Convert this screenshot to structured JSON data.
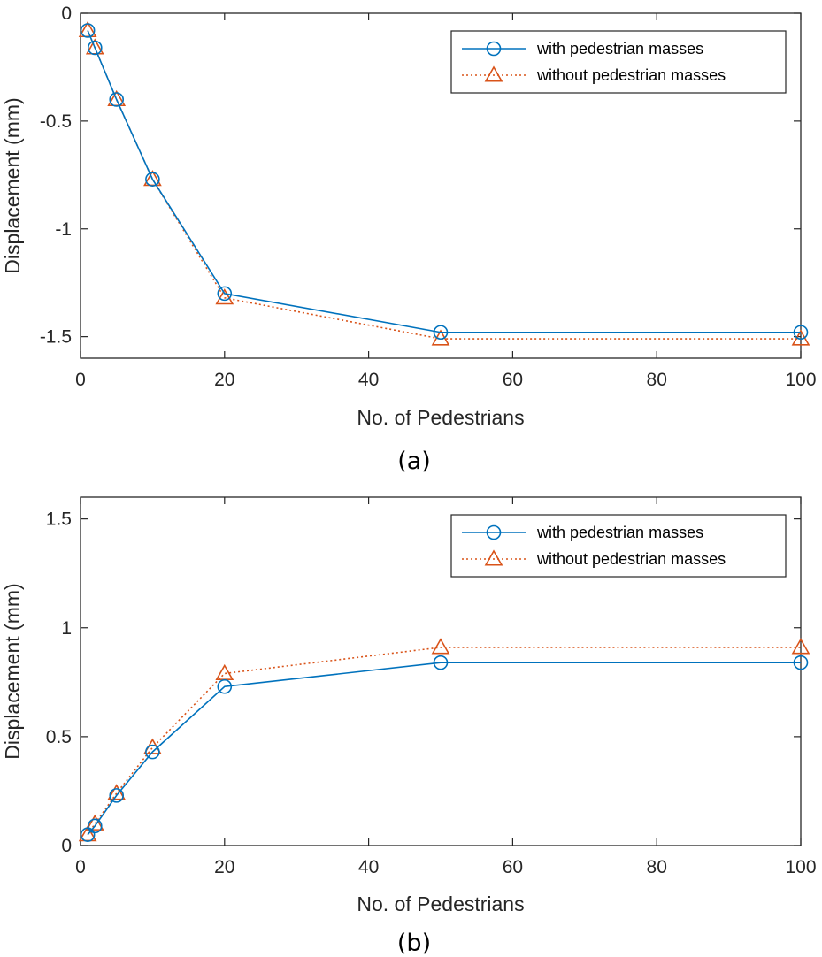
{
  "chart_data": [
    {
      "type": "line",
      "panel_label": "(a)",
      "xlabel": "No. of Pedestrians",
      "ylabel": "Displacement (mm)",
      "xlim": [
        0,
        100
      ],
      "ylim": [
        -1.6,
        0
      ],
      "xticks": [
        0,
        20,
        40,
        60,
        80,
        100
      ],
      "yticks": [
        0,
        -0.5,
        -1,
        -1.5
      ],
      "ytick_labels": [
        "0",
        "-0.5",
        "-1",
        "-1.5"
      ],
      "legend_position": "top-right",
      "grid": false,
      "x": [
        1,
        2,
        5,
        10,
        20,
        50,
        100
      ],
      "series": [
        {
          "name": "with pedestrian masses",
          "values": [
            -0.08,
            -0.16,
            -0.4,
            -0.77,
            -1.3,
            -1.48,
            -1.48
          ],
          "color": "#0072BD",
          "marker": "circle",
          "line_style": "solid"
        },
        {
          "name": "without pedestrian masses",
          "values": [
            -0.08,
            -0.16,
            -0.4,
            -0.77,
            -1.32,
            -1.51,
            -1.51
          ],
          "color": "#D95319",
          "marker": "triangle",
          "line_style": "dotted"
        }
      ]
    },
    {
      "type": "line",
      "panel_label": "(b)",
      "xlabel": "No. of Pedestrians",
      "ylabel": "Displacement (mm)",
      "xlim": [
        0,
        100
      ],
      "ylim": [
        0,
        1.6
      ],
      "xticks": [
        0,
        20,
        40,
        60,
        80,
        100
      ],
      "yticks": [
        0,
        0.5,
        1,
        1.5
      ],
      "ytick_labels": [
        "0",
        "0.5",
        "1",
        "1.5"
      ],
      "legend_position": "top-right",
      "grid": false,
      "x": [
        1,
        2,
        5,
        10,
        20,
        50,
        100
      ],
      "series": [
        {
          "name": "with pedestrian masses",
          "values": [
            0.05,
            0.09,
            0.23,
            0.43,
            0.73,
            0.84,
            0.84
          ],
          "color": "#0072BD",
          "marker": "circle",
          "line_style": "solid"
        },
        {
          "name": "without pedestrian masses",
          "values": [
            0.05,
            0.1,
            0.24,
            0.45,
            0.79,
            0.91,
            0.91
          ],
          "color": "#D95319",
          "marker": "triangle",
          "line_style": "dotted"
        }
      ]
    }
  ]
}
